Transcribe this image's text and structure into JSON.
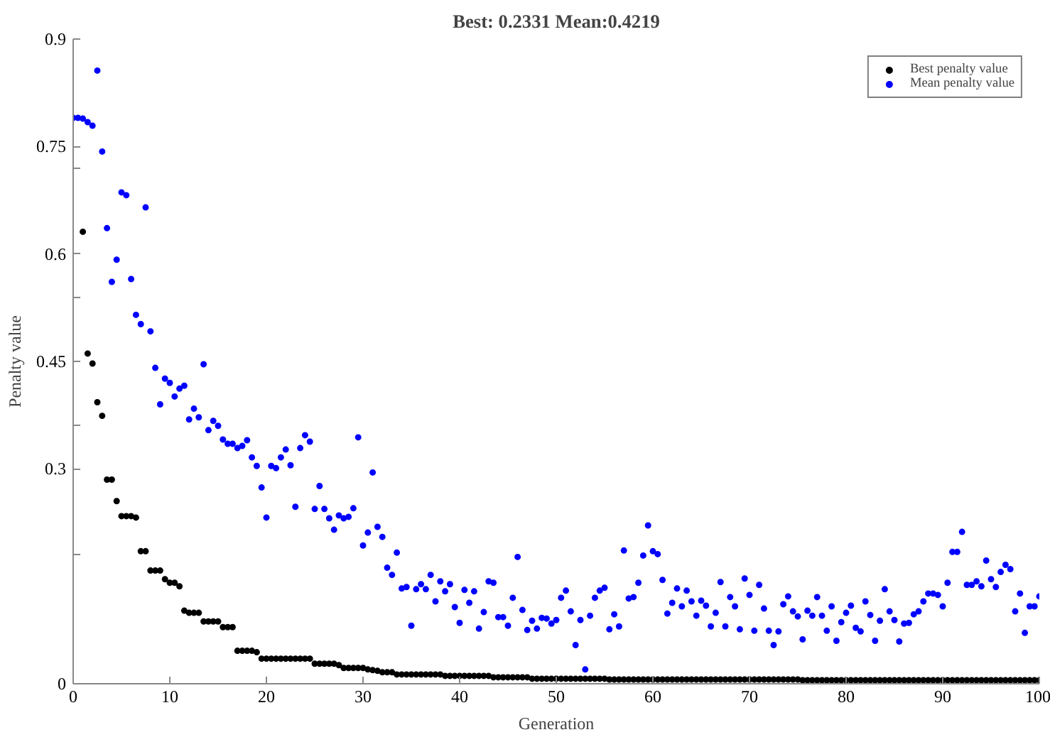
{
  "chart_data": {
    "type": "scatter",
    "title": "Best: 0.2331 Mean:0.4219",
    "xlabel": "Generation",
    "ylabel": "Penalty value",
    "x": [
      0,
      0.5,
      1,
      1.5,
      2,
      2.5,
      3,
      3.5,
      4,
      4.5,
      5,
      5.5,
      6,
      6.5,
      7,
      7.5,
      8,
      8.5,
      9,
      9.5,
      10,
      10.5,
      11,
      11.5,
      12,
      12.5,
      13,
      13.5,
      14,
      14.5,
      15,
      15.5,
      16,
      16.5,
      17,
      17.5,
      18,
      18.5,
      19,
      19.5,
      20,
      20.5,
      21,
      21.5,
      22,
      22.5,
      23,
      23.5,
      24,
      24.5,
      25,
      25.5,
      26,
      26.5,
      27,
      27.5,
      28,
      28.5,
      29,
      29.5,
      30,
      30.5,
      31,
      31.5,
      32,
      32.5,
      33,
      33.5,
      34,
      34.5,
      35,
      35.5,
      36,
      36.5,
      37,
      37.5,
      38,
      38.5,
      39,
      39.5,
      40,
      40.5,
      41,
      41.5,
      42,
      42.5,
      43,
      43.5,
      44,
      44.5,
      45,
      45.5,
      46,
      46.5,
      47,
      47.5,
      48,
      48.5,
      49,
      49.5,
      50,
      50.5,
      51,
      51.5,
      52,
      52.5,
      53,
      53.5,
      54,
      54.5,
      55,
      55.5,
      56,
      56.5,
      57,
      57.5,
      58,
      58.5,
      59,
      59.5,
      60,
      60.5,
      61,
      61.5,
      62,
      62.5,
      63,
      63.5,
      64,
      64.5,
      65,
      65.5,
      66,
      66.5,
      67,
      67.5,
      68,
      68.5,
      69,
      69.5,
      70,
      70.5,
      71,
      71.5,
      72,
      72.5,
      73,
      73.5,
      74,
      74.5,
      75,
      75.5,
      76,
      76.5,
      77,
      77.5,
      78,
      78.5,
      79,
      79.5,
      80,
      80.5,
      81,
      81.5,
      82,
      82.5,
      83,
      83.5,
      84,
      84.5,
      85,
      85.5,
      86,
      86.5,
      87,
      87.5,
      88,
      88.5,
      89,
      89.5,
      90,
      90.5,
      91,
      91.5,
      92,
      92.5,
      93,
      93.5,
      94,
      94.5,
      95,
      95.5,
      96,
      96.5,
      97,
      97.5,
      98,
      98.5,
      99,
      99.5,
      100
    ],
    "series": [
      {
        "name": "Best penalty value",
        "color": "#000000",
        "values": [
          null,
          null,
          0.631,
          0.461,
          0.447,
          0.393,
          0.374,
          0.285,
          0.285,
          0.255,
          0.234,
          0.234,
          0.234,
          0.232,
          0.185,
          0.185,
          0.158,
          0.158,
          0.158,
          0.146,
          0.141,
          0.141,
          0.136,
          0.102,
          0.099,
          0.099,
          0.099,
          0.087,
          0.087,
          0.087,
          0.087,
          0.079,
          0.079,
          0.079,
          0.046,
          0.046,
          0.046,
          0.046,
          0.044,
          0.035,
          0.035,
          0.035,
          0.035,
          0.035,
          0.035,
          0.035,
          0.035,
          0.035,
          0.035,
          0.035,
          0.028,
          0.028,
          0.028,
          0.028,
          0.028,
          0.026,
          0.022,
          0.022,
          0.022,
          0.022,
          0.022,
          0.02,
          0.019,
          0.018,
          0.016,
          0.016,
          0.016,
          0.013,
          0.013,
          0.013,
          0.013,
          0.013,
          0.013,
          0.013,
          0.013,
          0.013,
          0.013,
          0.011,
          0.011,
          0.011,
          0.011,
          0.011,
          0.011,
          0.011,
          0.011,
          0.011,
          0.011,
          0.009,
          0.009,
          0.009,
          0.009,
          0.009,
          0.009,
          0.009,
          0.009,
          0.007,
          0.007,
          0.007,
          0.007,
          0.007,
          0.007,
          0.007,
          0.007,
          0.007,
          0.007,
          0.007,
          0.007,
          0.007,
          0.007,
          0.007,
          0.007,
          0.006,
          0.006,
          0.006,
          0.006,
          0.006,
          0.006,
          0.006,
          0.006,
          0.006,
          0.006,
          0.006,
          0.006,
          0.006,
          0.006,
          0.006,
          0.006,
          0.006,
          0.006,
          0.006,
          0.006,
          0.006,
          0.006,
          0.006,
          0.006,
          0.006,
          0.006,
          0.006,
          0.006,
          0.006,
          0.006,
          0.006,
          0.006,
          0.006,
          0.006,
          0.006,
          0.006,
          0.006,
          0.006,
          0.006,
          0.006,
          0.005,
          0.005,
          0.005,
          0.005,
          0.005,
          0.005,
          0.005,
          0.005,
          0.005,
          0.005,
          0.005,
          0.005,
          0.005,
          0.005,
          0.005,
          0.005,
          0.005,
          0.005,
          0.005,
          0.005,
          0.005,
          0.005,
          0.005,
          0.005,
          0.005,
          0.005,
          0.005,
          0.005,
          0.005,
          0.005,
          0.005,
          0.005,
          0.005,
          0.005,
          0.005,
          0.005,
          0.005,
          0.005,
          0.005,
          0.005,
          0.005,
          0.005,
          0.005,
          0.005,
          0.005,
          0.005,
          0.005,
          0.005,
          0.005,
          0.005
        ]
      },
      {
        "name": "Mean penalty value",
        "color": "#0000ff",
        "values": [
          0.79,
          0.79,
          0.789,
          0.784,
          0.779,
          0.856,
          0.743,
          0.636,
          0.561,
          0.592,
          0.686,
          0.682,
          0.565,
          0.515,
          0.502,
          0.665,
          0.492,
          0.441,
          0.39,
          0.426,
          0.42,
          0.401,
          0.412,
          0.416,
          0.369,
          0.384,
          0.372,
          0.446,
          0.354,
          0.367,
          0.36,
          0.341,
          0.335,
          0.335,
          0.329,
          0.332,
          0.34,
          0.316,
          0.304,
          0.274,
          0.232,
          0.304,
          0.301,
          0.316,
          0.327,
          0.305,
          0.247,
          0.329,
          0.347,
          0.338,
          0.244,
          0.276,
          0.244,
          0.231,
          0.215,
          0.235,
          0.231,
          0.233,
          0.245,
          0.344,
          0.193,
          0.211,
          0.295,
          0.219,
          0.205,
          0.162,
          0.152,
          0.183,
          0.133,
          0.135,
          0.081,
          0.132,
          0.139,
          0.132,
          0.152,
          0.115,
          0.143,
          0.129,
          0.139,
          0.107,
          0.085,
          0.131,
          0.113,
          0.129,
          0.077,
          0.1,
          0.143,
          0.141,
          0.093,
          0.093,
          0.081,
          0.12,
          0.177,
          0.103,
          0.075,
          0.088,
          0.077,
          0.092,
          0.091,
          0.084,
          0.089,
          0.12,
          0.13,
          0.101,
          0.054,
          0.089,
          0.02,
          0.095,
          0.12,
          0.13,
          0.134,
          0.076,
          0.097,
          0.08,
          0.186,
          0.119,
          0.121,
          0.141,
          0.179,
          0.221,
          0.185,
          0.181,
          0.145,
          0.098,
          0.113,
          0.133,
          0.108,
          0.13,
          0.115,
          0.095,
          0.116,
          0.109,
          0.08,
          0.099,
          0.142,
          0.08,
          0.121,
          0.108,
          0.076,
          0.147,
          0.124,
          0.074,
          0.138,
          0.105,
          0.074,
          0.054,
          0.073,
          0.111,
          0.122,
          0.101,
          0.094,
          0.062,
          0.102,
          0.095,
          0.121,
          0.095,
          0.074,
          0.108,
          0.06,
          0.086,
          0.099,
          0.109,
          0.078,
          0.073,
          0.115,
          0.096,
          0.06,
          0.088,
          0.132,
          0.101,
          0.089,
          0.059,
          0.084,
          0.085,
          0.097,
          0.101,
          0.115,
          0.126,
          0.126,
          0.124,
          0.108,
          0.141,
          0.184,
          0.184,
          0.212,
          0.138,
          0.138,
          0.143,
          0.136,
          0.172,
          0.146,
          0.135,
          0.156,
          0.166,
          0.16,
          0.101,
          0.126,
          0.071,
          0.108,
          0.108,
          0.122
        ]
      }
    ],
    "xlim": [
      0,
      100
    ],
    "ylim": [
      0,
      0.9
    ],
    "xticks": [
      0,
      10,
      20,
      30,
      40,
      50,
      60,
      70,
      80,
      90,
      100
    ],
    "yticks": [
      0,
      {
        "value": 0.18,
        "label": null
      },
      0.3,
      {
        "value": 0.36,
        "label": null
      },
      0.45,
      {
        "value": 0.54,
        "label": null
      },
      0.6,
      {
        "value": 0.72,
        "label": null
      },
      0.75,
      0.9
    ],
    "marker": "circle",
    "grid": false,
    "legend": "top right"
  }
}
